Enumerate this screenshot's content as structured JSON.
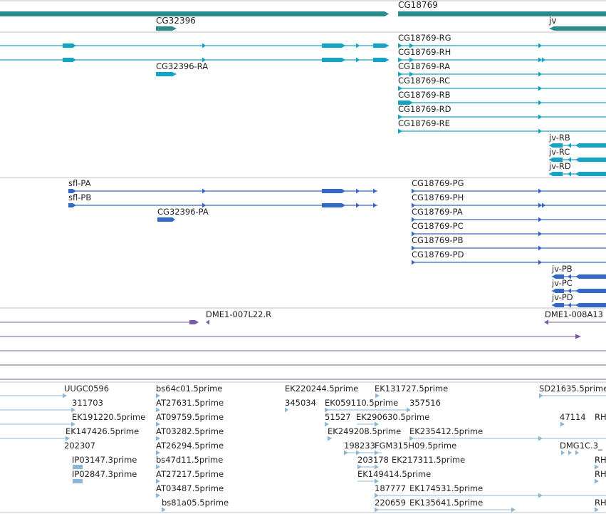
{
  "colors": {
    "gene": "#2a8c8c",
    "transcript": "#11a3c8",
    "protein": "#3468c8",
    "clone": "#7b5aa6",
    "est": "#8cb8d8",
    "divider": "#bfbfbf"
  },
  "gene_track": {
    "labels": [
      "CG18769",
      "CG32396",
      "jv"
    ]
  },
  "transcript_track": {
    "labels": [
      "CG18769-RG",
      "CG18769-RH",
      "CG32396-RA",
      "CG18769-RA",
      "CG18769-RC",
      "CG18769-RB",
      "CG18769-RD",
      "CG18769-RE",
      "jv-RB",
      "jv-RC",
      "jv-RD"
    ]
  },
  "protein_track": {
    "labels": [
      "sfl-PA",
      "sfl-PB",
      "CG32396-PA",
      "CG18769-PG",
      "CG18769-PH",
      "CG18769-PA",
      "CG18769-PC",
      "CG18769-PB",
      "CG18769-PD",
      "jv-PB",
      "jv-PC",
      "jv-PD"
    ]
  },
  "clone_track": {
    "labels": [
      "DME1-007L22.R",
      "DME1-008A13"
    ]
  },
  "est_track": {
    "labels": [
      "UUGC0596",
      "bs64c01.5prime",
      "EK220244.5prime",
      "EK131727.5prime",
      "SD21635.5prime",
      "311703",
      "AT27631.5prime",
      "345034",
      "EK059110.5prime",
      "357516",
      "EK191220.5prime",
      "AT09759.5prime",
      "51527",
      "EK290630.5prime",
      "47114",
      "RH",
      "EK147426.5prime",
      "AT03282.5prime",
      "EK249208.5prime",
      "EK235412.5prime",
      "202307",
      "AT26294.5prime",
      "198233",
      "FGM315H09.5prime",
      "DMG1C.3_",
      "IP03147.3prime",
      "bs47d11.5prime",
      "203178",
      "EK217311.5prime",
      "RH",
      "IP02847.3prime",
      "AT27217.5prime",
      "EK149414.5prime",
      "RH",
      "AT03487.5prime",
      "187777",
      "EK174531.5prime",
      "bs81a05.5prime",
      "220659",
      "EK135641.5prime",
      "RH"
    ]
  }
}
